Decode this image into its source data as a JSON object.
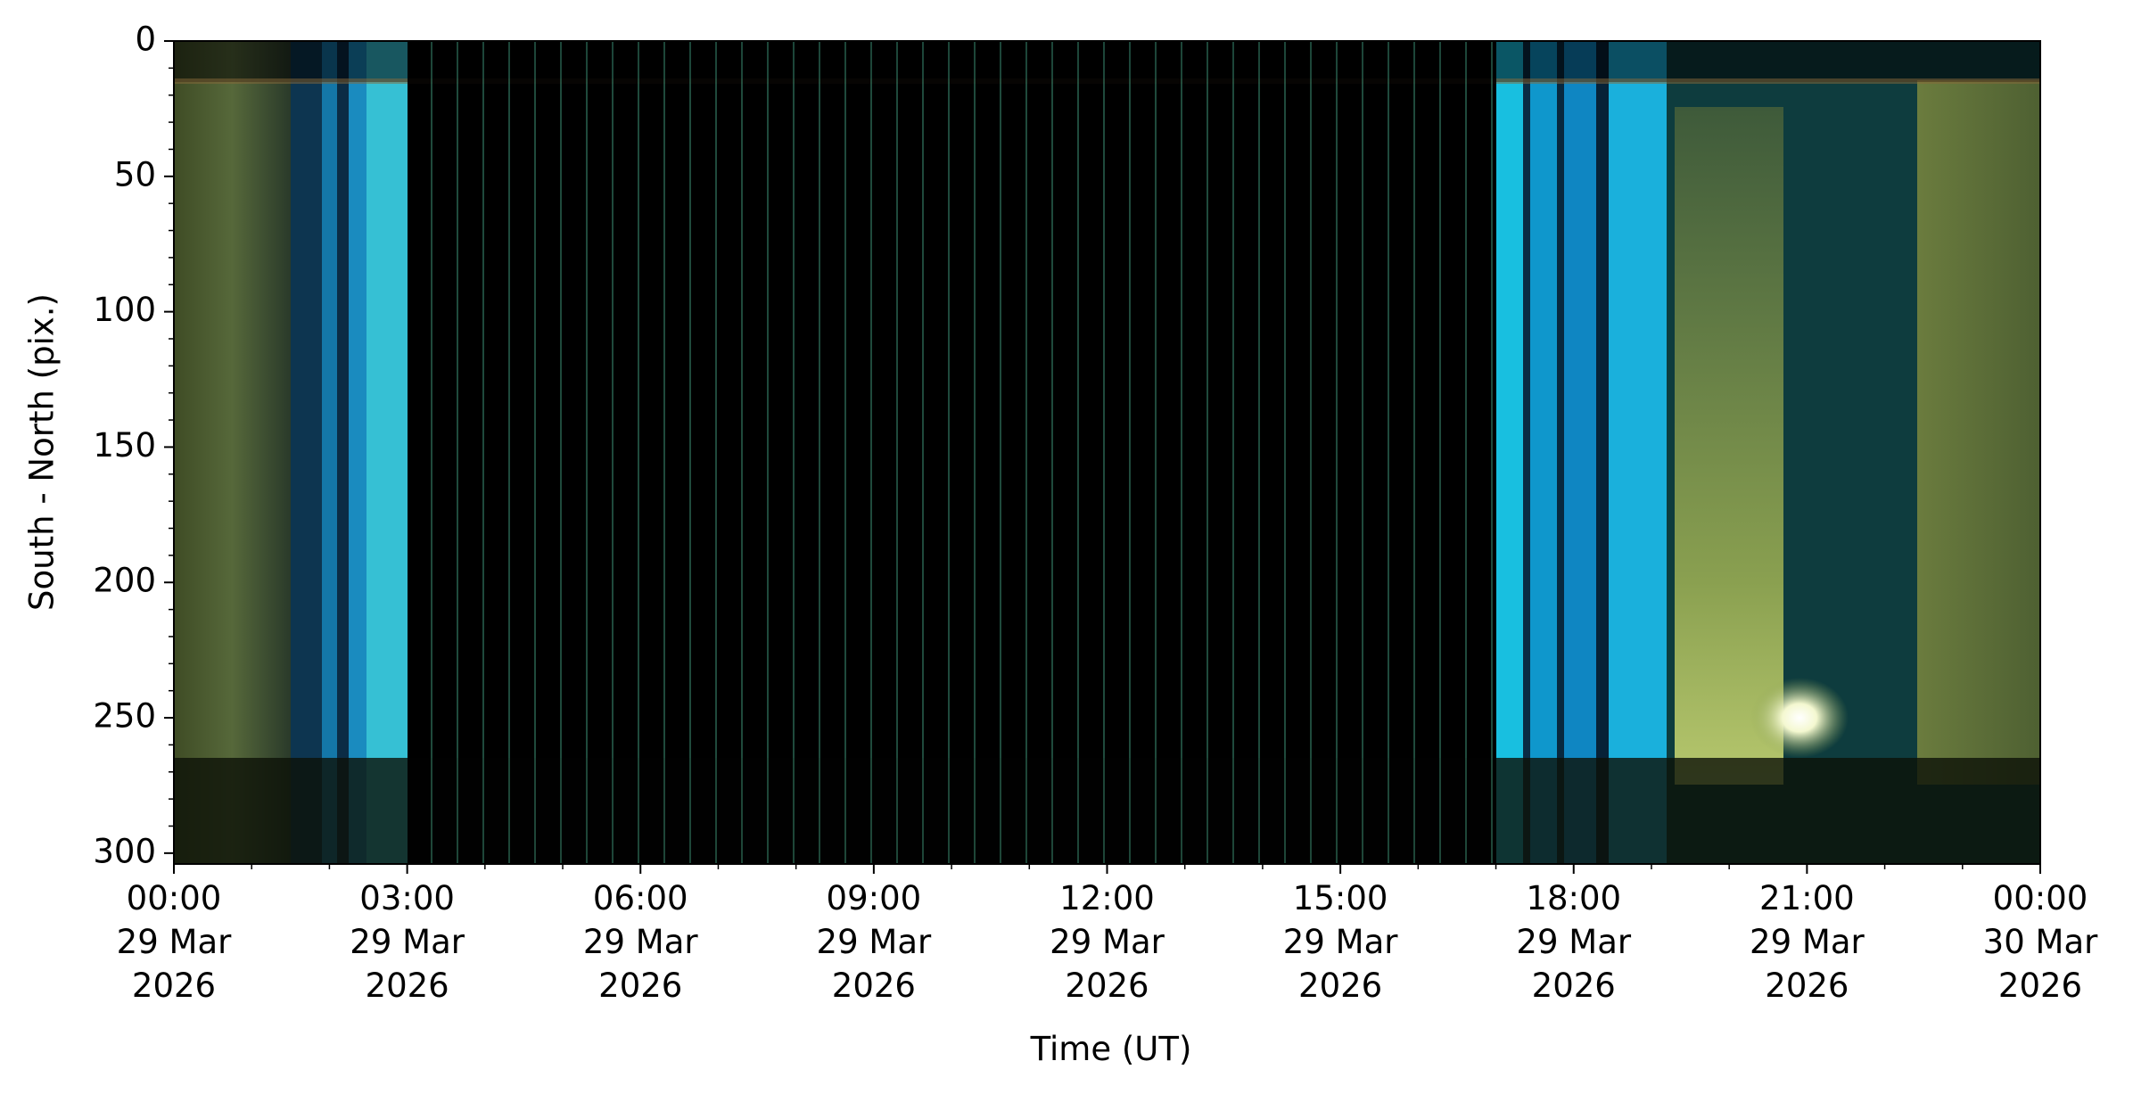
{
  "chart_data": {
    "type": "image",
    "xlabel": "Time (UT)",
    "ylabel": "South - North (pix.)",
    "xlim": [
      0,
      24
    ],
    "ylim": [
      304,
      0
    ],
    "xticks": [
      {
        "value": 0,
        "label": "00:00\n29 Mar\n2026"
      },
      {
        "value": 3,
        "label": "03:00\n29 Mar\n2026"
      },
      {
        "value": 6,
        "label": "06:00\n29 Mar\n2026"
      },
      {
        "value": 9,
        "label": "09:00\n29 Mar\n2026"
      },
      {
        "value": 12,
        "label": "12:00\n29 Mar\n2026"
      },
      {
        "value": 15,
        "label": "15:00\n29 Mar\n2026"
      },
      {
        "value": 18,
        "label": "18:00\n29 Mar\n2026"
      },
      {
        "value": 21,
        "label": "21:00\n29 Mar\n2026"
      },
      {
        "value": 24,
        "label": "00:00\n30 Mar\n2026"
      }
    ],
    "yticks": [
      0,
      50,
      100,
      150,
      200,
      250,
      300
    ],
    "xminorticks": [
      1,
      2,
      4,
      5,
      7,
      8,
      10,
      11,
      13,
      14,
      16,
      17,
      19,
      20,
      22,
      23
    ],
    "yminorticks": [
      10,
      20,
      30,
      40,
      60,
      70,
      80,
      90,
      110,
      120,
      130,
      140,
      160,
      170,
      180,
      190,
      210,
      220,
      230,
      240,
      260,
      270,
      280,
      290
    ]
  }
}
